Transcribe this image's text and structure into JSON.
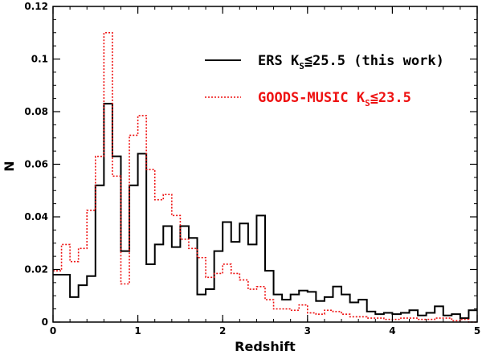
{
  "chart_data": {
    "type": "histogram",
    "xlabel": "Redshift",
    "ylabel": "N",
    "xlim": [
      0,
      5
    ],
    "ylim": [
      0,
      0.12
    ],
    "bin_width": 0.1,
    "x_ticks": [
      "0",
      "1",
      "2",
      "3",
      "4",
      "5"
    ],
    "y_ticks": [
      "0",
      "0.02",
      "0.04",
      "0.06",
      "0.08",
      "0.1",
      "0.12"
    ],
    "grid": false,
    "legend_position": "top-right",
    "series": [
      {
        "legend_main": "ERS K",
        "legend_sub": "S",
        "legend_rest": "≦25.5 (this work)",
        "color": "#000000",
        "style": "solid",
        "values": [
          0.018,
          0.018,
          0.0095,
          0.014,
          0.0175,
          0.052,
          0.083,
          0.063,
          0.027,
          0.052,
          0.064,
          0.022,
          0.0295,
          0.0365,
          0.0285,
          0.0365,
          0.032,
          0.0105,
          0.0125,
          0.027,
          0.038,
          0.0305,
          0.0375,
          0.0295,
          0.0405,
          0.0195,
          0.0105,
          0.0085,
          0.0105,
          0.012,
          0.0115,
          0.008,
          0.0095,
          0.0135,
          0.0105,
          0.0075,
          0.0085,
          0.004,
          0.003,
          0.0035,
          0.003,
          0.0035,
          0.0045,
          0.0025,
          0.0035,
          0.006,
          0.0025,
          0.003,
          0.0015,
          0.0045
        ]
      },
      {
        "legend_main": "GOODS-MUSIC K",
        "legend_sub": "S",
        "legend_rest": "≦23.5",
        "color": "#ee1111",
        "style": "dotted",
        "values": [
          0.0195,
          0.0295,
          0.023,
          0.028,
          0.0425,
          0.063,
          0.11,
          0.0555,
          0.0145,
          0.071,
          0.0785,
          0.058,
          0.0465,
          0.0485,
          0.0405,
          0.0315,
          0.028,
          0.0245,
          0.017,
          0.0185,
          0.022,
          0.0185,
          0.016,
          0.0125,
          0.0135,
          0.0085,
          0.005,
          0.005,
          0.0045,
          0.0065,
          0.0035,
          0.003,
          0.0045,
          0.004,
          0.003,
          0.002,
          0.002,
          0.0015,
          0.0015,
          0.001,
          0.001,
          0.0015,
          0.0015,
          0.001,
          0.001,
          0.0015,
          0.0015,
          0.0005,
          0.001,
          0.0
        ]
      }
    ]
  }
}
